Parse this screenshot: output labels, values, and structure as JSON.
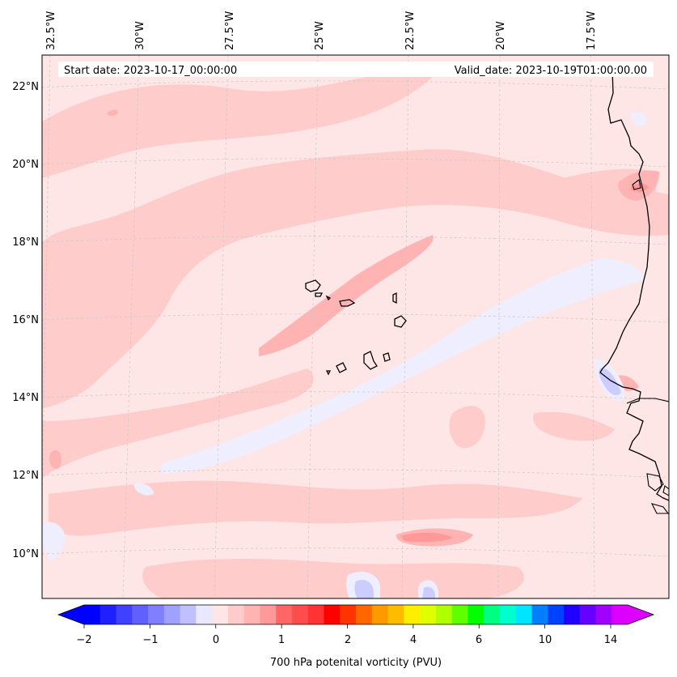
{
  "header": {
    "start_date": "Start date: 2023-10-17_00:00:00",
    "valid_date": "Valid_date: 2023-10-19T01:00:00.00"
  },
  "map": {
    "longitude_labels": [
      "32.5°W",
      "30°W",
      "27.5°W",
      "25°W",
      "22.5°W",
      "20°W",
      "17.5°W"
    ],
    "latitude_labels": [
      "22°N",
      "20°N",
      "18°N",
      "16°N",
      "14°N",
      "12°N",
      "10°N"
    ],
    "gridlines": true,
    "colors": {
      "background_field": "#ffe6e6",
      "weak_positive": "#ffcccc",
      "moderate_positive": "#ffb3b3",
      "stronger_positive": "#ff9999",
      "weak_negative": "#eeeeff",
      "moderate_negative": "#ccccff",
      "coastline": "#000000"
    }
  },
  "colorbar": {
    "title": "700 hPa potenital vorticity (PVU)",
    "tick_labels": [
      "−2",
      "−1",
      "0",
      "1",
      "2",
      "4",
      "6",
      "10",
      "14"
    ],
    "colors": [
      "#0000ff",
      "#2020ff",
      "#4040ff",
      "#6060ff",
      "#8080ff",
      "#a0a0ff",
      "#c0c0ff",
      "#e8e8ff",
      "#ffe6e6",
      "#ffcccc",
      "#ffb3b3",
      "#ff9999",
      "#ff6666",
      "#ff4d4d",
      "#ff3333",
      "#ff0000",
      "#ff3300",
      "#ff6600",
      "#ff9900",
      "#ffbb00",
      "#ffee00",
      "#e0ff00",
      "#b0ff00",
      "#60ff00",
      "#00ff00",
      "#00ff80",
      "#00ffcc",
      "#00e5ff",
      "#0080ff",
      "#0040ff",
      "#2000ff",
      "#6600ff",
      "#a000ff",
      "#dd00ff"
    ]
  }
}
